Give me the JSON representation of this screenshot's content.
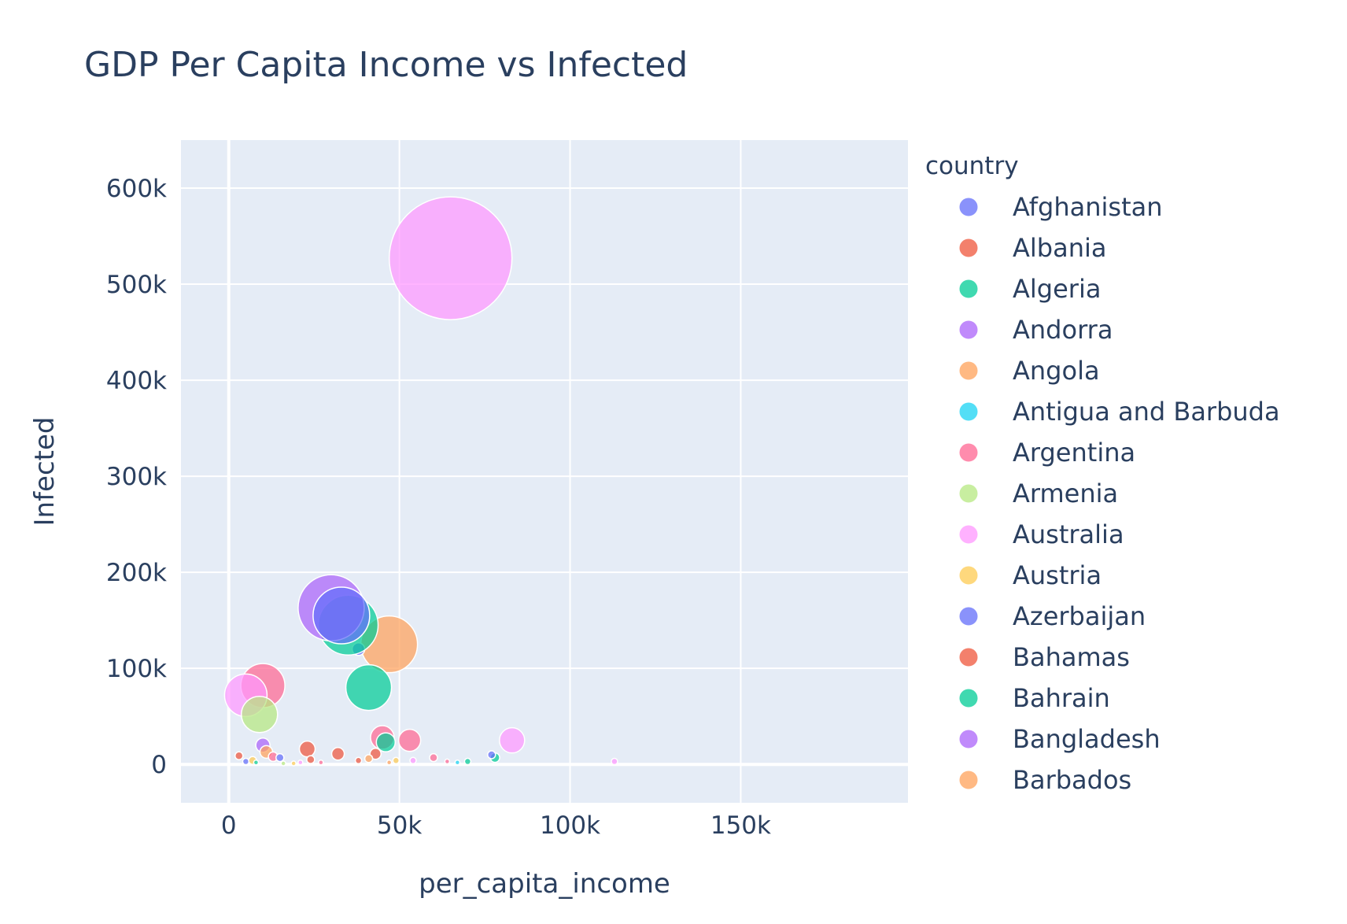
{
  "chart_data": {
    "type": "scatter",
    "title": "GDP Per Capita Income vs Infected",
    "xlabel": "per_capita_income",
    "ylabel": "Infected",
    "xlim": [
      -14000,
      199000
    ],
    "ylim": [
      -40000,
      650000
    ],
    "x_ticks": [
      0,
      50000,
      100000,
      150000
    ],
    "x_tick_labels": [
      "0",
      "50k",
      "100k",
      "150k"
    ],
    "y_ticks": [
      0,
      100000,
      200000,
      300000,
      400000,
      500000,
      600000
    ],
    "y_tick_labels": [
      "0",
      "100k",
      "200k",
      "300k",
      "400k",
      "500k",
      "600k"
    ],
    "grid": true,
    "legend_title": "country",
    "legend_placement": "right",
    "series": [
      {
        "name": "Afghanistan",
        "color": "#636efa"
      },
      {
        "name": "Albania",
        "color": "#EF553B"
      },
      {
        "name": "Algeria",
        "color": "#00cc96"
      },
      {
        "name": "Andorra",
        "color": "#ab63fa"
      },
      {
        "name": "Angola",
        "color": "#FFA15A"
      },
      {
        "name": "Antigua and Barbuda",
        "color": "#19d3f3"
      },
      {
        "name": "Argentina",
        "color": "#FF6692"
      },
      {
        "name": "Armenia",
        "color": "#B6E880"
      },
      {
        "name": "Australia",
        "color": "#FF97FF"
      },
      {
        "name": "Austria",
        "color": "#FECB52"
      },
      {
        "name": "Azerbaijan",
        "color": "#636efa"
      },
      {
        "name": "Bahamas",
        "color": "#EF553B"
      },
      {
        "name": "Bahrain",
        "color": "#00cc96"
      },
      {
        "name": "Bangladesh",
        "color": "#ab63fa"
      },
      {
        "name": "Barbados",
        "color": "#FFA15A"
      }
    ],
    "points": [
      {
        "x": 65000,
        "y": 527000,
        "size": 78,
        "color": "#FF97FF"
      },
      {
        "x": 47000,
        "y": 125000,
        "size": 36,
        "color": "#FFA15A"
      },
      {
        "x": 38000,
        "y": 120000,
        "size": 8,
        "color": "#636efa"
      },
      {
        "x": 35000,
        "y": 145000,
        "size": 38,
        "color": "#00cc96"
      },
      {
        "x": 30000,
        "y": 163000,
        "size": 42,
        "color": "#ab63fa"
      },
      {
        "x": 33000,
        "y": 155000,
        "size": 36,
        "color": "#636efa"
      },
      {
        "x": 41000,
        "y": 80000,
        "size": 29,
        "color": "#00cc96"
      },
      {
        "x": 10000,
        "y": 82000,
        "size": 28,
        "color": "#FF6692"
      },
      {
        "x": 5000,
        "y": 72000,
        "size": 27,
        "color": "#FF97FF"
      },
      {
        "x": 9000,
        "y": 52000,
        "size": 23,
        "color": "#B6E880"
      },
      {
        "x": 45000,
        "y": 28000,
        "size": 15,
        "color": "#FF6692"
      },
      {
        "x": 46000,
        "y": 23000,
        "size": 12,
        "color": "#00cc96"
      },
      {
        "x": 53000,
        "y": 25000,
        "size": 14,
        "color": "#FF6692"
      },
      {
        "x": 83000,
        "y": 25000,
        "size": 16,
        "color": "#FF97FF"
      },
      {
        "x": 23000,
        "y": 16000,
        "size": 10,
        "color": "#EF553B"
      },
      {
        "x": 32000,
        "y": 11000,
        "size": 8,
        "color": "#EF553B"
      },
      {
        "x": 43000,
        "y": 11000,
        "size": 7,
        "color": "#EF553B"
      },
      {
        "x": 10000,
        "y": 20000,
        "size": 9,
        "color": "#ab63fa"
      },
      {
        "x": 11000,
        "y": 13000,
        "size": 8,
        "color": "#FFA15A"
      },
      {
        "x": 13000,
        "y": 8000,
        "size": 6,
        "color": "#FF6692"
      },
      {
        "x": 3000,
        "y": 9000,
        "size": 5,
        "color": "#EF553B"
      },
      {
        "x": 5000,
        "y": 3000,
        "size": 4,
        "color": "#636efa"
      },
      {
        "x": 7000,
        "y": 4000,
        "size": 5,
        "color": "#FECB52"
      },
      {
        "x": 8000,
        "y": 2000,
        "size": 3,
        "color": "#00cc96"
      },
      {
        "x": 15000,
        "y": 7000,
        "size": 5,
        "color": "#636efa"
      },
      {
        "x": 24000,
        "y": 5000,
        "size": 5,
        "color": "#EF553B"
      },
      {
        "x": 38000,
        "y": 4000,
        "size": 4,
        "color": "#EF553B"
      },
      {
        "x": 41000,
        "y": 6000,
        "size": 5,
        "color": "#FFA15A"
      },
      {
        "x": 49000,
        "y": 4000,
        "size": 4,
        "color": "#FECB52"
      },
      {
        "x": 54000,
        "y": 4000,
        "size": 4,
        "color": "#FF97FF"
      },
      {
        "x": 60000,
        "y": 7000,
        "size": 5,
        "color": "#FF6692"
      },
      {
        "x": 64000,
        "y": 3000,
        "size": 3,
        "color": "#FF6692"
      },
      {
        "x": 67000,
        "y": 2000,
        "size": 3,
        "color": "#19d3f3"
      },
      {
        "x": 70000,
        "y": 3000,
        "size": 4,
        "color": "#00cc96"
      },
      {
        "x": 78000,
        "y": 7000,
        "size": 6,
        "color": "#00cc96"
      },
      {
        "x": 77000,
        "y": 10000,
        "size": 5,
        "color": "#636efa"
      },
      {
        "x": 113000,
        "y": 3000,
        "size": 4,
        "color": "#FF97FF"
      },
      {
        "x": 21000,
        "y": 2000,
        "size": 3,
        "color": "#FF97FF"
      },
      {
        "x": 27000,
        "y": 2000,
        "size": 3,
        "color": "#FF6692"
      },
      {
        "x": 19000,
        "y": 1000,
        "size": 3,
        "color": "#FECB52"
      },
      {
        "x": 16000,
        "y": 1000,
        "size": 3,
        "color": "#B6E880"
      },
      {
        "x": 47000,
        "y": 2000,
        "size": 3,
        "color": "#FFA15A"
      }
    ]
  }
}
